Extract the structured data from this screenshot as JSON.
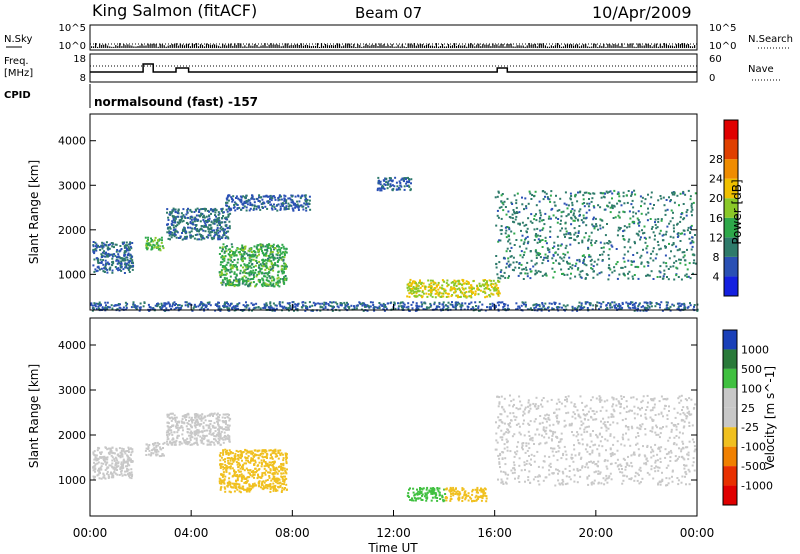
{
  "header": {
    "station": "King Salmon (fitACF)",
    "beam": "Beam 07",
    "date": "10/Apr/2009"
  },
  "strip": {
    "nsky_label": "N.Sky",
    "nsearch_label": "N.Search",
    "freq_label_line1": "Freq.",
    "freq_label_line2": "[MHz]",
    "nave_label": "Nave",
    "cpid_label": "CPID",
    "cpid_text": "normalsound (fast) -157",
    "nsky_ticks": [
      "10^5",
      "10^0"
    ],
    "nsearch_ticks": [
      "10^5",
      "10^0"
    ],
    "freq_ticks": [
      "18",
      "8"
    ],
    "nave_ticks": [
      "60",
      "0"
    ]
  },
  "chart_data": [
    {
      "type": "heatmap",
      "title": "",
      "xlabel": "",
      "ylabel": "Slant Range [km]",
      "xlim": [
        "00:00",
        "24:00"
      ],
      "ylim": [
        200,
        4600
      ],
      "yticks": [
        1000,
        2000,
        3000,
        4000
      ],
      "colorbar": {
        "label": "Power [dB]",
        "ticks": [
          "4",
          "8",
          "12",
          "16",
          "20",
          "24",
          "28"
        ],
        "colors": [
          "#1420e0",
          "#2a50b4",
          "#2e7a6a",
          "#2ea84a",
          "#8ac828",
          "#f0c000",
          "#f08c00",
          "#e04000",
          "#e00000"
        ]
      },
      "regions": [
        {
          "start": "00:05",
          "end": "01:40",
          "range_low": 1050,
          "range_high": 1750,
          "power_db": 6
        },
        {
          "start": "02:10",
          "end": "02:55",
          "range_low": 1550,
          "range_high": 1850,
          "power_db": 14
        },
        {
          "start": "03:00",
          "end": "05:30",
          "range_low": 1800,
          "range_high": 2500,
          "power_db": 7
        },
        {
          "start": "05:05",
          "end": "07:45",
          "range_low": 750,
          "range_high": 1700,
          "power_db": 12
        },
        {
          "start": "05:20",
          "end": "08:40",
          "range_low": 2450,
          "range_high": 2800,
          "power_db": 5
        },
        {
          "start": "11:20",
          "end": "12:40",
          "range_low": 2900,
          "range_high": 3200,
          "power_db": 5
        },
        {
          "start": "12:30",
          "end": "16:10",
          "range_low": 500,
          "range_high": 900,
          "power_db": 18
        },
        {
          "start": "16:00",
          "end": "23:55",
          "range_low": 900,
          "range_high": 2900,
          "power_db": 8
        },
        {
          "start": "00:00",
          "end": "24:00",
          "range_low": 200,
          "range_high": 400,
          "power_db": 5
        }
      ]
    },
    {
      "type": "heatmap",
      "title": "",
      "xlabel": "Time UT",
      "ylabel": "Slant Range [km]",
      "xlim": [
        "00:00",
        "24:00"
      ],
      "ylim": [
        200,
        4600
      ],
      "xticks": [
        "00:00",
        "04:00",
        "08:00",
        "12:00",
        "16:00",
        "20:00",
        "00:00"
      ],
      "yticks": [
        1000,
        2000,
        3000,
        4000
      ],
      "colorbar": {
        "label": "Velocity [m s^-1]",
        "ticks": [
          "1000",
          "500",
          "100",
          "25",
          "-25",
          "-100",
          "-500",
          "-1000"
        ],
        "colors": [
          "#1a40b8",
          "#2a7a3a",
          "#40c040",
          "#c8c8c8",
          "#c8c8c8",
          "#f0c020",
          "#f08000",
          "#e83000",
          "#e00000"
        ]
      },
      "regions": [
        {
          "start": "00:05",
          "end": "01:40",
          "range_low": 1050,
          "range_high": 1750,
          "velocity_ms": 0
        },
        {
          "start": "02:10",
          "end": "02:55",
          "range_low": 1550,
          "range_high": 1850,
          "velocity_ms": 0
        },
        {
          "start": "03:00",
          "end": "05:30",
          "range_low": 1800,
          "range_high": 2500,
          "velocity_ms": 0
        },
        {
          "start": "05:05",
          "end": "07:45",
          "range_low": 750,
          "range_high": 1700,
          "velocity_ms": -150
        },
        {
          "start": "12:30",
          "end": "14:00",
          "range_low": 550,
          "range_high": 850,
          "velocity_ms": 120
        },
        {
          "start": "14:00",
          "end": "15:40",
          "range_low": 550,
          "range_high": 850,
          "velocity_ms": -150
        },
        {
          "start": "16:00",
          "end": "23:55",
          "range_low": 900,
          "range_high": 2900,
          "velocity_ms": 0
        }
      ]
    }
  ]
}
